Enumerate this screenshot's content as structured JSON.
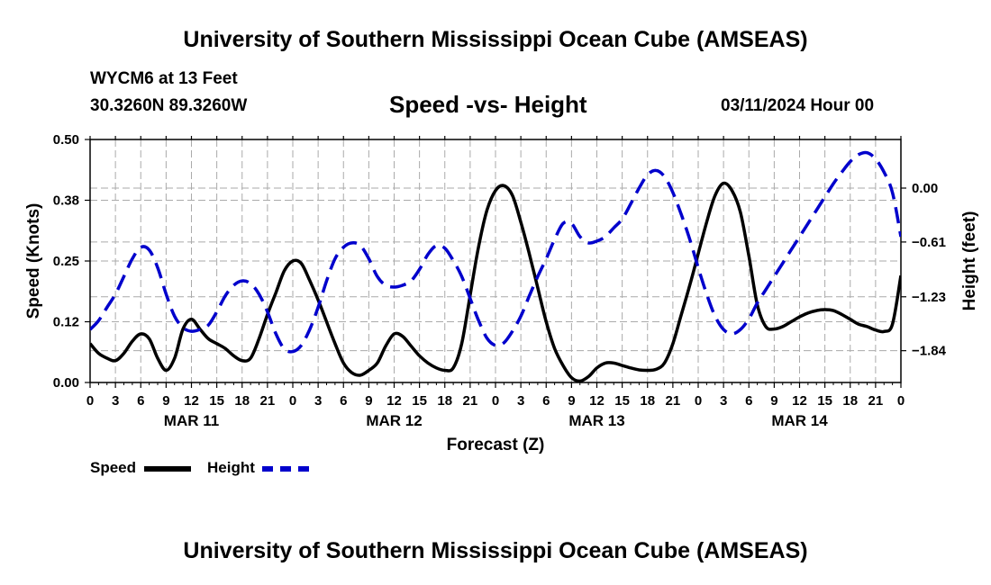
{
  "header": {
    "title": "University of Southern Mississippi Ocean Cube (AMSEAS)",
    "station": "WYCM6 at 13 Feet",
    "coords": "30.3260N  89.3260W",
    "subtitle": "Speed -vs- Height",
    "datetime": "03/11/2024 Hour 00"
  },
  "footer": {
    "title": "University of Southern Mississippi Ocean Cube (AMSEAS)"
  },
  "legend": {
    "speed_label": "Speed",
    "height_label": "Height"
  },
  "colors": {
    "speed": "#000000",
    "height": "#0000cc",
    "grid": "#aaaaaa"
  },
  "chart_data": {
    "type": "line",
    "title": "Speed -vs- Height",
    "xlabel": "Forecast (Z)",
    "ylabel": "Speed (Knots)",
    "ylabel_right": "Height (feet)",
    "xlim": [
      0,
      96
    ],
    "ylim": [
      0,
      0.5
    ],
    "ylim_right": [
      -2.2,
      0.55
    ],
    "grid": true,
    "x_ticks": [
      0,
      3,
      6,
      9,
      12,
      15,
      18,
      21,
      24,
      27,
      30,
      33,
      36,
      39,
      42,
      45,
      48,
      51,
      54,
      57,
      60,
      63,
      66,
      69,
      72,
      75,
      78,
      81,
      84,
      87,
      90,
      93,
      96
    ],
    "x_tick_labels": [
      "0",
      "3",
      "6",
      "9",
      "12",
      "15",
      "18",
      "21",
      "0",
      "3",
      "6",
      "9",
      "12",
      "15",
      "18",
      "21",
      "0",
      "3",
      "6",
      "9",
      "12",
      "15",
      "18",
      "21",
      "0",
      "3",
      "6",
      "9",
      "12",
      "15",
      "18",
      "21",
      "0"
    ],
    "day_labels": [
      {
        "x": 12,
        "label": "MAR 11"
      },
      {
        "x": 36,
        "label": "MAR 12"
      },
      {
        "x": 60,
        "label": "MAR 13"
      },
      {
        "x": 84,
        "label": "MAR 14"
      }
    ],
    "y_ticks_left": [
      0,
      0.125,
      0.25,
      0.375,
      0.5
    ],
    "y_tick_labels_left": [
      "0.00",
      "0.12",
      "0.25",
      "0.38",
      "0.50"
    ],
    "y_ticks_right": [
      -1.84,
      -1.23,
      -0.61,
      0.0
    ],
    "y_tick_labels_right": [
      "−1.84",
      "−1.23",
      "−0.61",
      "0.00"
    ],
    "series": [
      {
        "name": "Speed",
        "axis": "left",
        "style": "solid",
        "x": [
          0,
          1,
          2,
          3,
          4,
          5,
          6,
          7,
          8,
          9,
          10,
          11,
          12,
          13,
          14,
          15,
          16,
          17,
          18,
          19,
          20,
          21,
          22,
          23,
          24,
          25,
          26,
          27,
          28,
          29,
          30,
          31,
          32,
          33,
          34,
          35,
          36,
          37,
          38,
          39,
          40,
          41,
          42,
          43,
          44,
          45,
          46,
          47,
          48,
          49,
          50,
          51,
          52,
          53,
          54,
          55,
          56,
          57,
          58,
          59,
          60,
          61,
          62,
          63,
          64,
          65,
          66,
          67,
          68,
          69,
          70,
          71,
          72,
          73,
          74,
          75,
          76,
          77,
          78,
          79,
          80,
          81,
          82,
          83,
          84,
          85,
          86,
          87,
          88,
          89,
          90,
          91,
          92,
          93,
          94,
          95,
          96
        ],
        "values": [
          0.08,
          0.06,
          0.05,
          0.045,
          0.06,
          0.085,
          0.1,
          0.09,
          0.05,
          0.025,
          0.05,
          0.11,
          0.13,
          0.11,
          0.09,
          0.08,
          0.07,
          0.055,
          0.045,
          0.05,
          0.09,
          0.14,
          0.185,
          0.23,
          0.25,
          0.245,
          0.21,
          0.17,
          0.125,
          0.08,
          0.04,
          0.02,
          0.015,
          0.025,
          0.04,
          0.075,
          0.1,
          0.095,
          0.075,
          0.055,
          0.04,
          0.03,
          0.025,
          0.03,
          0.08,
          0.18,
          0.28,
          0.355,
          0.395,
          0.405,
          0.385,
          0.33,
          0.265,
          0.195,
          0.125,
          0.07,
          0.035,
          0.01,
          0.003,
          0.012,
          0.03,
          0.04,
          0.04,
          0.035,
          0.03,
          0.026,
          0.025,
          0.027,
          0.04,
          0.08,
          0.14,
          0.2,
          0.265,
          0.33,
          0.385,
          0.41,
          0.395,
          0.35,
          0.26,
          0.16,
          0.115,
          0.11,
          0.115,
          0.125,
          0.135,
          0.143,
          0.148,
          0.15,
          0.148,
          0.14,
          0.13,
          0.12,
          0.115,
          0.108,
          0.105,
          0.12,
          0.22
        ]
      },
      {
        "name": "Height",
        "axis": "right",
        "style": "dashed",
        "x": [
          0,
          1,
          2,
          3,
          4,
          5,
          6,
          7,
          8,
          9,
          10,
          11,
          12,
          13,
          14,
          15,
          16,
          17,
          18,
          19,
          20,
          21,
          22,
          23,
          24,
          25,
          26,
          27,
          28,
          29,
          30,
          31,
          32,
          33,
          34,
          35,
          36,
          37,
          38,
          39,
          40,
          41,
          42,
          43,
          44,
          45,
          46,
          47,
          48,
          49,
          50,
          51,
          52,
          53,
          54,
          55,
          56,
          57,
          58,
          59,
          60,
          61,
          62,
          63,
          64,
          65,
          66,
          67,
          68,
          69,
          70,
          71,
          72,
          73,
          74,
          75,
          76,
          77,
          78,
          79,
          80,
          81,
          82,
          83,
          84,
          85,
          86,
          87,
          88,
          89,
          90,
          91,
          92,
          93,
          94,
          95,
          96
        ],
        "values": [
          -1.6,
          -1.5,
          -1.35,
          -1.2,
          -1.0,
          -0.8,
          -0.67,
          -0.7,
          -0.9,
          -1.2,
          -1.45,
          -1.58,
          -1.62,
          -1.6,
          -1.55,
          -1.4,
          -1.22,
          -1.1,
          -1.05,
          -1.08,
          -1.2,
          -1.4,
          -1.65,
          -1.82,
          -1.85,
          -1.78,
          -1.6,
          -1.35,
          -1.05,
          -0.8,
          -0.67,
          -0.62,
          -0.65,
          -0.8,
          -1.0,
          -1.1,
          -1.12,
          -1.1,
          -1.05,
          -0.92,
          -0.75,
          -0.65,
          -0.68,
          -0.82,
          -1.0,
          -1.25,
          -1.5,
          -1.7,
          -1.78,
          -1.75,
          -1.62,
          -1.45,
          -1.22,
          -1.0,
          -0.8,
          -0.58,
          -0.4,
          -0.4,
          -0.55,
          -0.62,
          -0.6,
          -0.55,
          -0.45,
          -0.35,
          -0.18,
          0.0,
          0.15,
          0.2,
          0.13,
          -0.05,
          -0.3,
          -0.58,
          -0.9,
          -1.2,
          -1.45,
          -1.6,
          -1.65,
          -1.6,
          -1.48,
          -1.3,
          -1.15,
          -1.0,
          -0.85,
          -0.7,
          -0.55,
          -0.4,
          -0.25,
          -0.1,
          0.05,
          0.18,
          0.3,
          0.38,
          0.4,
          0.33,
          0.18,
          -0.05,
          -0.55
        ]
      }
    ]
  }
}
